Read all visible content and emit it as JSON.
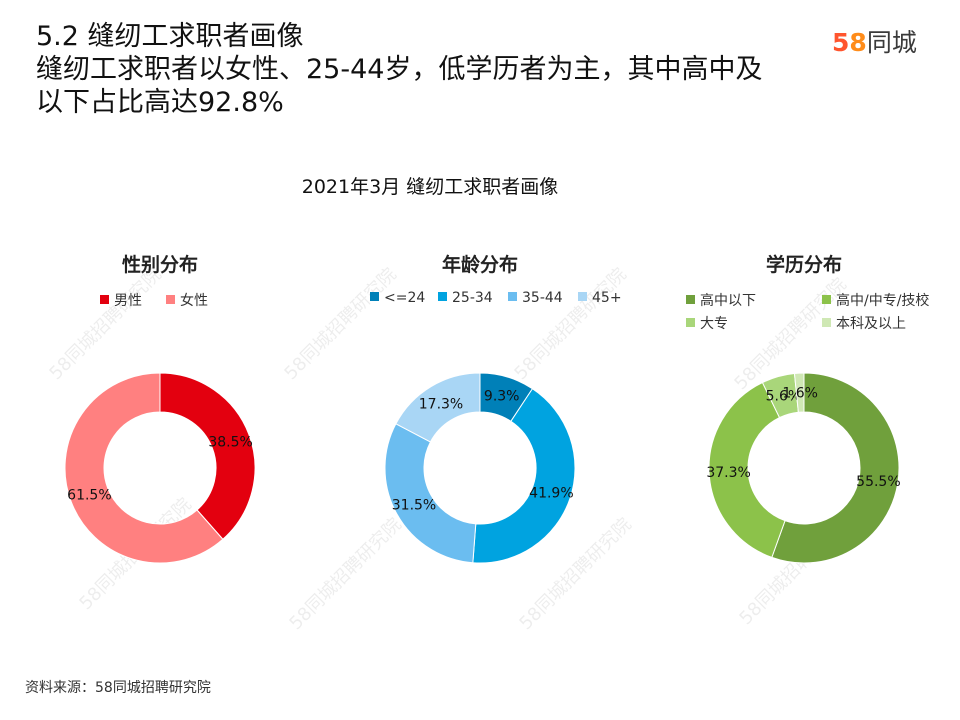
{
  "header": {
    "section_title": "5.2 缝纫工求职者画像",
    "subtitle_line1": "缝纫工求职者以女性、25-44岁，低学历者为主，其中高中及",
    "subtitle_line2": "以下占比高达92.8%"
  },
  "logo": {
    "digit5": "5",
    "digit8": "8",
    "name": "同城"
  },
  "watermark_text": "58同城招聘研究院",
  "source": "资料来源：58同城招聘研究院",
  "colors": {
    "male": "#e3000f",
    "female": "#ff8080",
    "age_u24": "#0080b8",
    "age_25_34": "#00a3e0",
    "age_35_44": "#6bbdf0",
    "age_45p": "#a9d6f5",
    "edu_below_hs": "#70a03c",
    "edu_hs_voc": "#8cc24a",
    "edu_college": "#a9d67a",
    "edu_bachelor": "#cfe8b4"
  },
  "chart_data": [
    {
      "type": "pie",
      "title": "性别分布",
      "overall_title": "2021年3月  缝纫工求职者画像",
      "labels": [
        "男性",
        "女性"
      ],
      "values": [
        38.5,
        61.5
      ],
      "value_labels": [
        "38.5%",
        "61.5%"
      ],
      "colors": [
        "#e3000f",
        "#ff8080"
      ],
      "legend_placement": "top"
    },
    {
      "type": "pie",
      "title": "年龄分布",
      "labels": [
        "<=24",
        "25-34",
        "35-44",
        "45+"
      ],
      "values": [
        9.3,
        41.9,
        31.5,
        17.3
      ],
      "value_labels": [
        "9.3%",
        "41.9%",
        "31.5%",
        "17.3%"
      ],
      "colors": [
        "#0080b8",
        "#00a3e0",
        "#6bbdf0",
        "#a9d6f5"
      ],
      "legend_placement": "top"
    },
    {
      "type": "pie",
      "title": "学历分布",
      "labels": [
        "高中以下",
        "高中/中专/技校",
        "大专",
        "本科及以上"
      ],
      "values": [
        55.5,
        37.3,
        5.6,
        1.6
      ],
      "value_labels": [
        "55.5%",
        "37.3%",
        "5.6%",
        "1.6%"
      ],
      "colors": [
        "#70a03c",
        "#8cc24a",
        "#a9d67a",
        "#cfe8b4"
      ],
      "legend_placement": "top"
    }
  ]
}
